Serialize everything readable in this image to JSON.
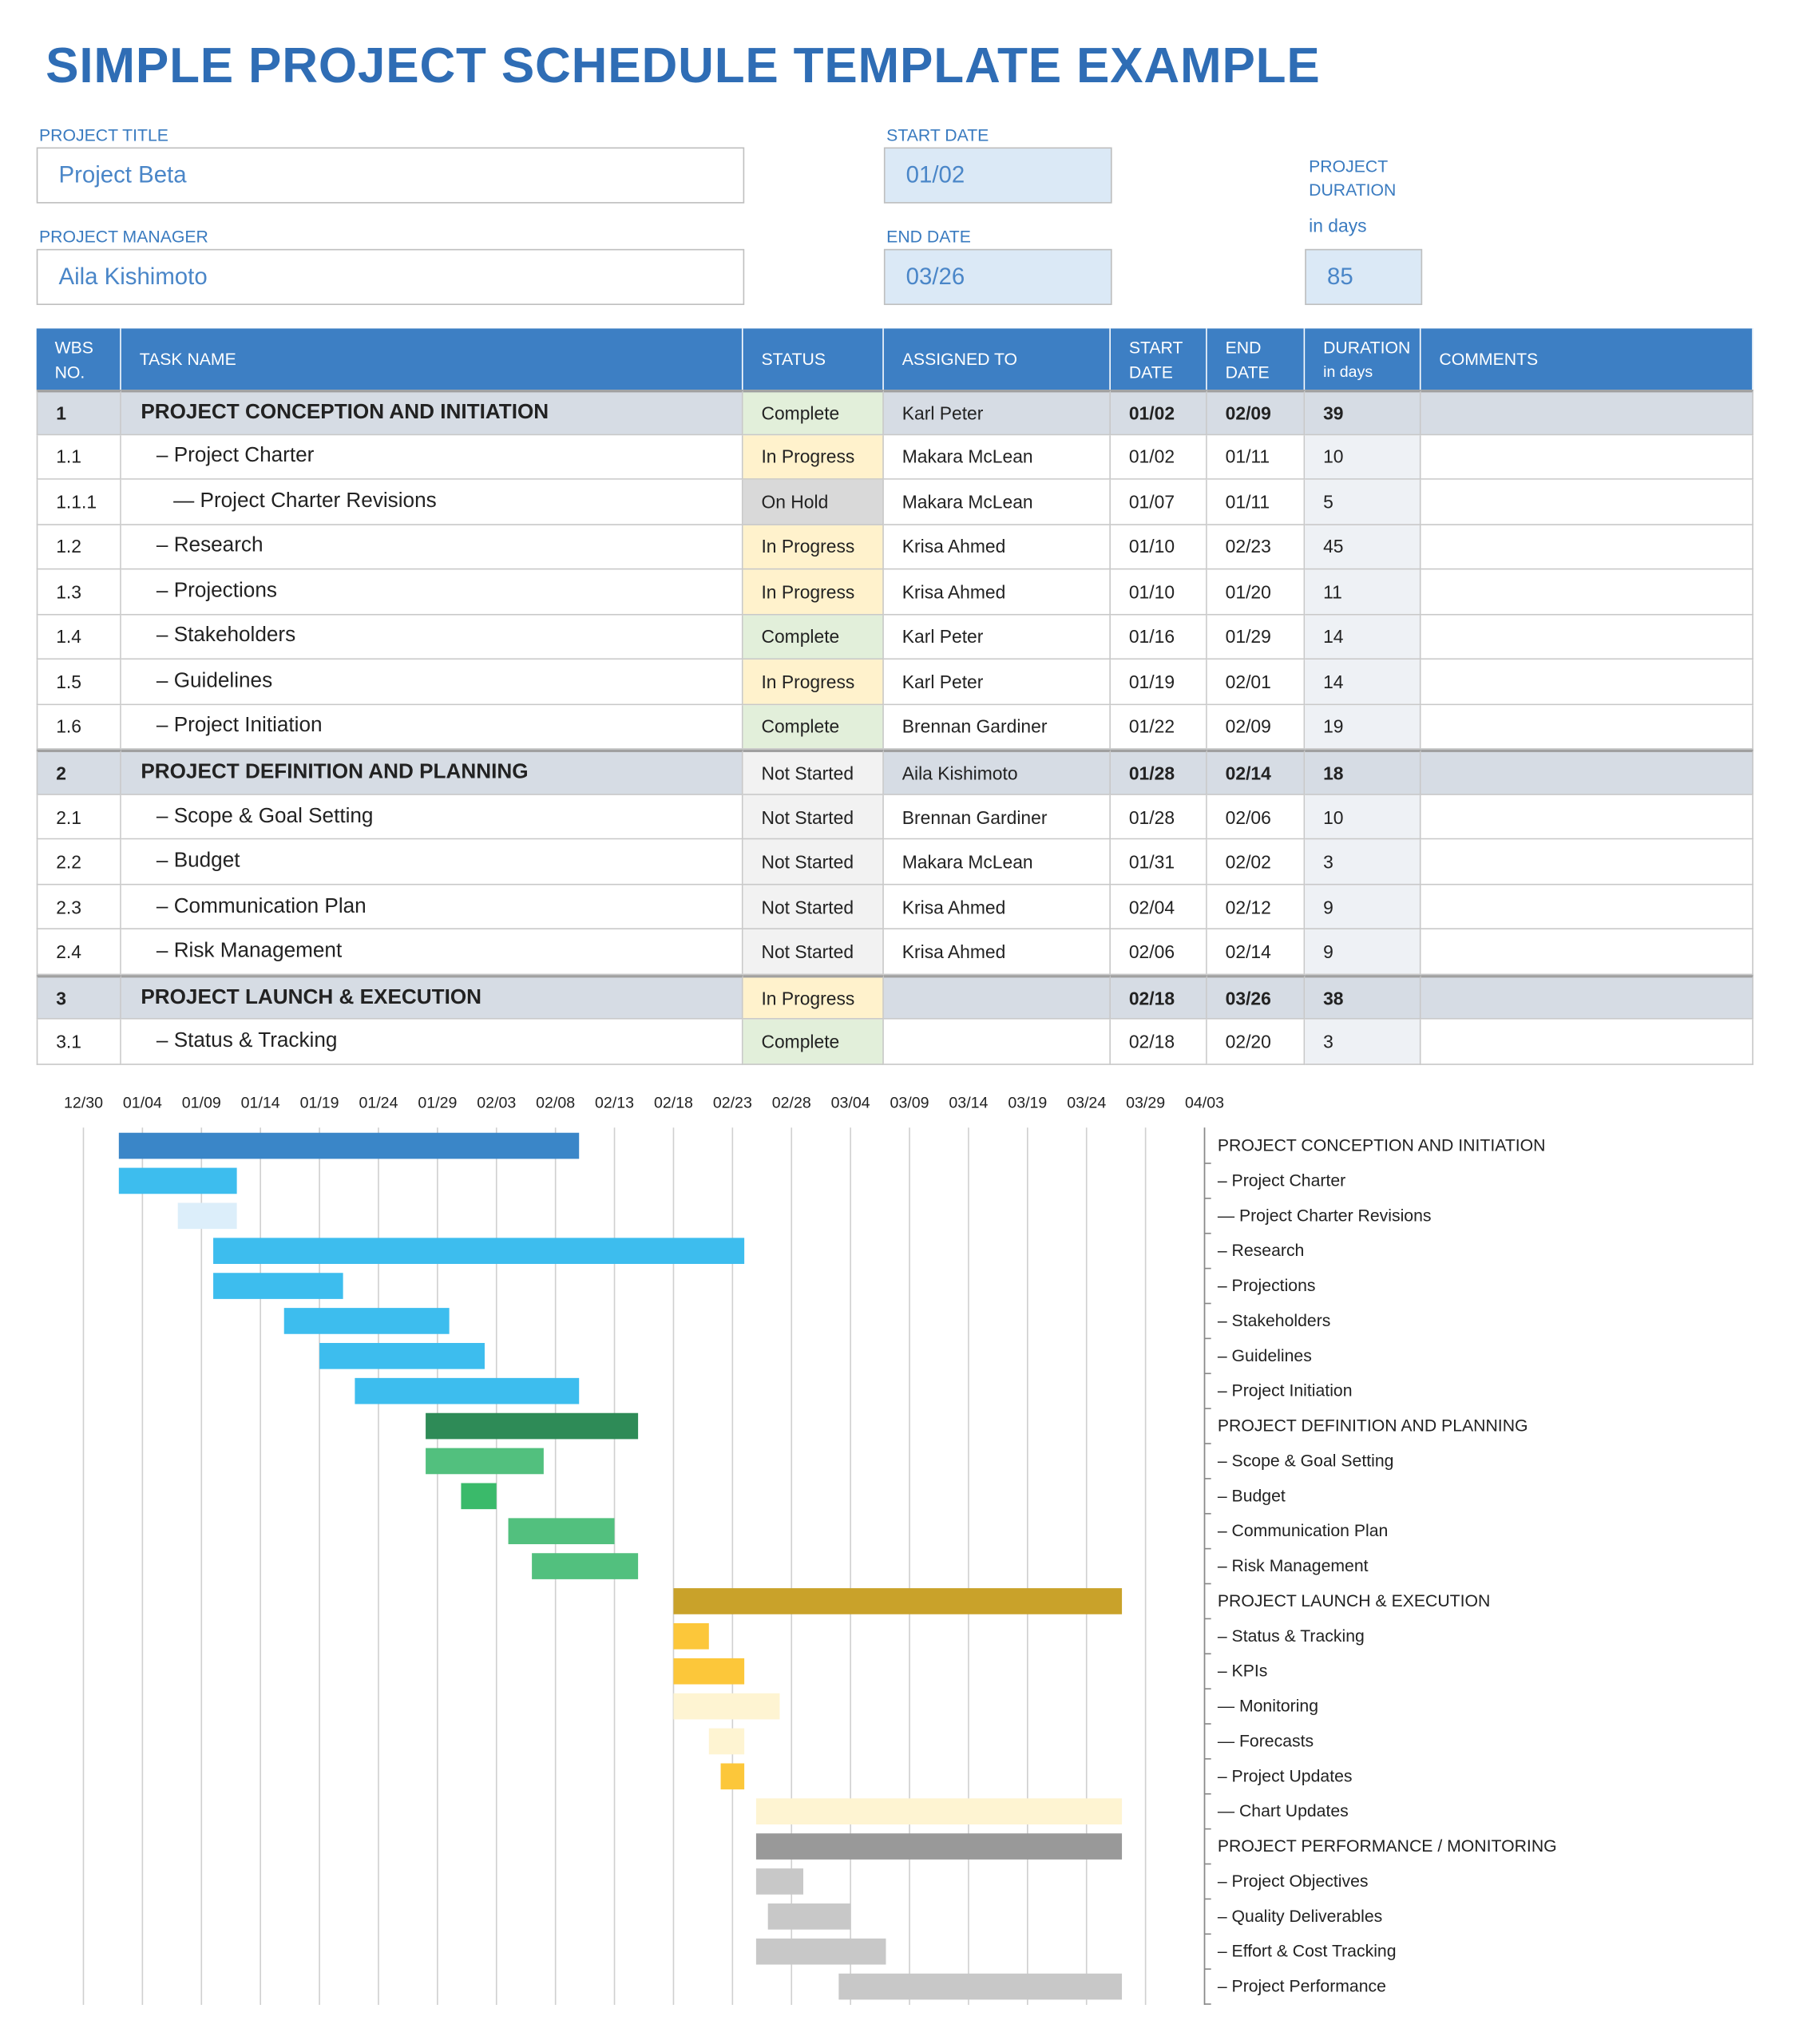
{
  "header": {
    "title": "SIMPLE PROJECT SCHEDULE TEMPLATE EXAMPLE",
    "project_title": {
      "label": "PROJECT TITLE",
      "value": "Project Beta"
    },
    "project_manager": {
      "label": "PROJECT MANAGER",
      "value": "Aila Kishimoto"
    },
    "start_date": {
      "label": "START DATE",
      "value": "01/02"
    },
    "end_date": {
      "label": "END DATE",
      "value": "03/26"
    },
    "project_duration": {
      "label": "PROJECT DURATION",
      "unit": "in days",
      "value": 85
    }
  },
  "table": {
    "columns": [
      "WBS NO.",
      "TASK NAME",
      "STATUS",
      "ASSIGNED TO",
      "START DATE",
      "END DATE",
      "DURATION",
      "COMMENTS"
    ],
    "duration_unit": "in days",
    "status_colors": {
      "Complete": "#e2efda",
      "In Progress": "#fff2cc",
      "On Hold": "#d9d9d9",
      "Not Started": "#f2f2f2"
    },
    "rows": [
      {
        "wbs": "1",
        "task": "PROJECT CONCEPTION AND INITIATION",
        "status": "Complete",
        "assigned": "Karl Peter",
        "start": "01/02",
        "end": "02/09",
        "duration": 39,
        "group": true
      },
      {
        "wbs": "1.1",
        "task": "– Project Charter",
        "status": "In Progress",
        "assigned": "Makara McLean",
        "start": "01/02",
        "end": "01/11",
        "duration": 10
      },
      {
        "wbs": "1.1.1",
        "task": "— Project Charter Revisions",
        "status": "On Hold",
        "assigned": "Makara McLean",
        "start": "01/07",
        "end": "01/11",
        "duration": 5,
        "level": 2
      },
      {
        "wbs": "1.2",
        "task": "– Research",
        "status": "In Progress",
        "assigned": "Krisa Ahmed",
        "start": "01/10",
        "end": "02/23",
        "duration": 45
      },
      {
        "wbs": "1.3",
        "task": "– Projections",
        "status": "In Progress",
        "assigned": "Krisa Ahmed",
        "start": "01/10",
        "end": "01/20",
        "duration": 11
      },
      {
        "wbs": "1.4",
        "task": "– Stakeholders",
        "status": "Complete",
        "assigned": "Karl Peter",
        "start": "01/16",
        "end": "01/29",
        "duration": 14
      },
      {
        "wbs": "1.5",
        "task": "– Guidelines",
        "status": "In Progress",
        "assigned": "Karl Peter",
        "start": "01/19",
        "end": "02/01",
        "duration": 14
      },
      {
        "wbs": "1.6",
        "task": "– Project Initiation",
        "status": "Complete",
        "assigned": "Brennan Gardiner",
        "start": "01/22",
        "end": "02/09",
        "duration": 19
      },
      {
        "wbs": "2",
        "task": "PROJECT DEFINITION AND PLANNING",
        "status": "Not Started",
        "assigned": "Aila Kishimoto",
        "start": "01/28",
        "end": "02/14",
        "duration": 18,
        "group": true
      },
      {
        "wbs": "2.1",
        "task": "– Scope & Goal Setting",
        "status": "Not Started",
        "assigned": "Brennan Gardiner",
        "start": "01/28",
        "end": "02/06",
        "duration": 10
      },
      {
        "wbs": "2.2",
        "task": "– Budget",
        "status": "Not Started",
        "assigned": "Makara McLean",
        "start": "01/31",
        "end": "02/02",
        "duration": 3
      },
      {
        "wbs": "2.3",
        "task": "– Communication Plan",
        "status": "Not Started",
        "assigned": "Krisa Ahmed",
        "start": "02/04",
        "end": "02/12",
        "duration": 9
      },
      {
        "wbs": "2.4",
        "task": "– Risk Management",
        "status": "Not Started",
        "assigned": "Krisa Ahmed",
        "start": "02/06",
        "end": "02/14",
        "duration": 9
      },
      {
        "wbs": "3",
        "task": "PROJECT LAUNCH & EXECUTION",
        "status": "In Progress",
        "start": "02/18",
        "end": "03/26",
        "duration": 38,
        "group": true
      },
      {
        "wbs": "3.1",
        "task": "– Status & Tracking",
        "status": "Complete",
        "start": "02/18",
        "end": "02/20",
        "duration": 3
      }
    ]
  },
  "chart_data": {
    "type": "gantt",
    "categories": [
      "PROJECT CONCEPTION AND INITIATION",
      "– Project Charter",
      "— Project Charter Revisions",
      "– Research",
      "– Projections",
      "– Stakeholders",
      "– Guidelines",
      "– Project Initiation",
      "PROJECT DEFINITION AND PLANNING",
      "– Scope & Goal Setting",
      "– Budget",
      "– Communication Plan",
      "– Risk Management",
      "PROJECT LAUNCH & EXECUTION",
      "– Status & Tracking",
      "– KPIs",
      "— Monitoring",
      "— Forecasts",
      "– Project Updates",
      "— Chart Updates",
      "PROJECT PERFORMANCE / MONITORING",
      "– Project Objectives",
      "– Quality Deliverables",
      "– Effort & Cost Tracking",
      "– Project Performance"
    ],
    "start": [
      3,
      3,
      8,
      11,
      11,
      17,
      20,
      23,
      29,
      29,
      32,
      36,
      38,
      50,
      50,
      50,
      50,
      53,
      54,
      57,
      57,
      57,
      58,
      57,
      64
    ],
    "duration": [
      39,
      10,
      5,
      45,
      11,
      14,
      14,
      19,
      18,
      10,
      3,
      9,
      9,
      38,
      3,
      6,
      9,
      3,
      2,
      31,
      31,
      4,
      7,
      11,
      24
    ],
    "colors": [
      "#3a86c8",
      "#3dbdee",
      "#dceefa",
      "#3dbdee",
      "#3dbdee",
      "#3dbdee",
      "#3dbdee",
      "#3dbdee",
      "#2e8b57",
      "#52c07e",
      "#3aba6a",
      "#52c07e",
      "#52c07e",
      "#c9a22a",
      "#fcc73a",
      "#fcc73a",
      "#fef4d2",
      "#fef4d2",
      "#fcc73a",
      "#fef4d2",
      "#999999",
      "#c8c8c8",
      "#c8c8c8",
      "#c8c8c8",
      "#c8c8c8"
    ],
    "xlim": [
      0,
      95
    ],
    "xticks": [
      {
        "value": 0,
        "label": "12/30"
      },
      {
        "value": 5,
        "label": "01/04"
      },
      {
        "value": 10,
        "label": "01/09"
      },
      {
        "value": 15,
        "label": "01/14"
      },
      {
        "value": 20,
        "label": "01/19"
      },
      {
        "value": 25,
        "label": "01/24"
      },
      {
        "value": 30,
        "label": "01/29"
      },
      {
        "value": 35,
        "label": "02/03"
      },
      {
        "value": 40,
        "label": "02/08"
      },
      {
        "value": 45,
        "label": "02/13"
      },
      {
        "value": 50,
        "label": "02/18"
      },
      {
        "value": 55,
        "label": "02/23"
      },
      {
        "value": 60,
        "label": "02/28"
      },
      {
        "value": 65,
        "label": "03/04"
      },
      {
        "value": 70,
        "label": "03/09"
      },
      {
        "value": 75,
        "label": "03/14"
      },
      {
        "value": 80,
        "label": "03/19"
      },
      {
        "value": 85,
        "label": "03/24"
      },
      {
        "value": 90,
        "label": "03/29"
      },
      {
        "value": 95,
        "label": "04/03"
      }
    ],
    "grid": true
  }
}
